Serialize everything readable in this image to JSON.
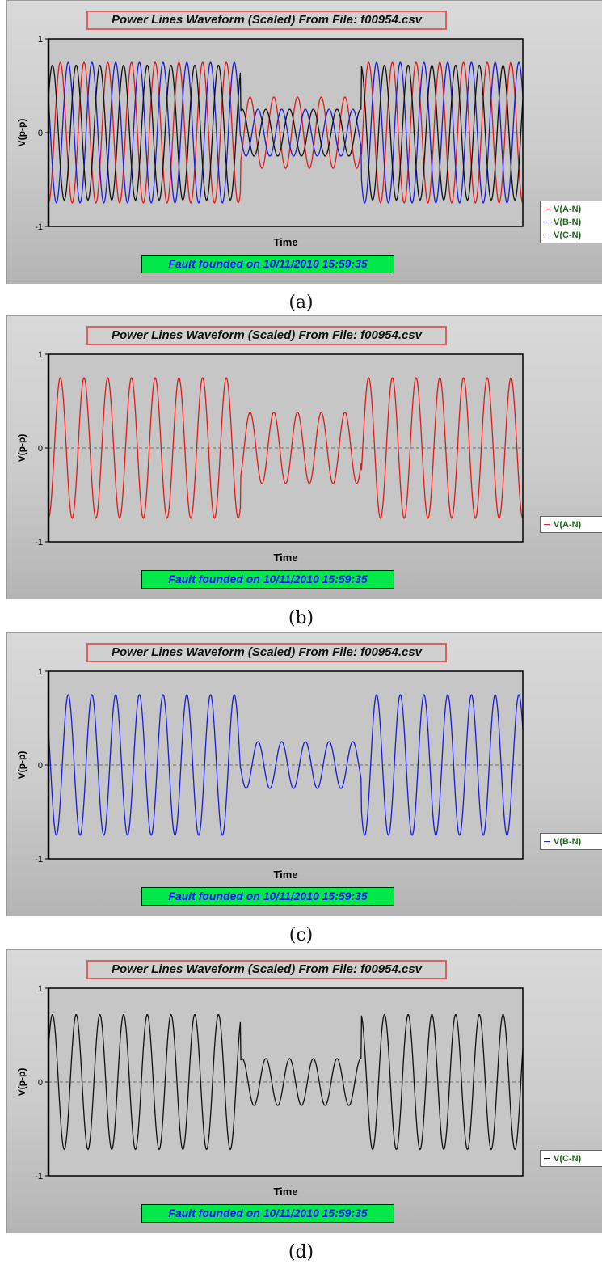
{
  "chart_data": [
    {
      "type": "line",
      "panel_label": "(a)",
      "title": "Power Lines Waveform (Scaled) From File: f00954.csv",
      "xlabel": "Time",
      "ylabel": "V(p-p)",
      "ylim": [
        -1,
        1
      ],
      "yticks": [
        "1",
        "0",
        "-1"
      ],
      "grid": "dashed lines at 1, 0, -1",
      "legend_placement": "right",
      "fault_text": "Fault founded on 10/11/2010 15:59:35",
      "series": [
        {
          "name": "V(A-N)",
          "color": "#e01a1a",
          "pre_fault_amplitude": 0.75,
          "fault_amplitude": 0.38,
          "post_fault_amplitude": 0.75,
          "cycles": 20,
          "fault_interval_cycles": [
            8.1,
            13.2
          ]
        },
        {
          "name": "V(B-N)",
          "color": "#1c1cd6",
          "pre_fault_amplitude": 0.75,
          "fault_amplitude": 0.25,
          "post_fault_amplitude": 0.75,
          "cycles": 20,
          "fault_interval_cycles": [
            8.1,
            13.2
          ]
        },
        {
          "name": "V(C-N)",
          "color": "#111111",
          "pre_fault_amplitude": 0.72,
          "fault_amplitude": 0.25,
          "post_fault_amplitude": 0.72,
          "cycles": 20,
          "fault_interval_cycles": [
            8.1,
            13.2
          ]
        }
      ]
    },
    {
      "type": "line",
      "panel_label": "(b)",
      "title": "Power Lines Waveform (Scaled) From File: f00954.csv",
      "xlabel": "Time",
      "ylabel": "V(p-p)",
      "ylim": [
        -1,
        1
      ],
      "yticks": [
        "1",
        "0",
        "-1"
      ],
      "grid": "dashed lines at 1, 0, -1",
      "legend_placement": "right",
      "fault_text": "Fault founded on 10/11/2010 15:59:35",
      "series": [
        {
          "name": "V(A-N)",
          "color": "#e01a1a",
          "pre_fault_amplitude": 0.75,
          "fault_amplitude": 0.38,
          "post_fault_amplitude": 0.75,
          "cycles": 20,
          "fault_interval_cycles": [
            8.1,
            13.2
          ]
        }
      ]
    },
    {
      "type": "line",
      "panel_label": "(c)",
      "title": "Power Lines Waveform (Scaled) From File: f00954.csv",
      "xlabel": "Time",
      "ylabel": "V(p-p)",
      "ylim": [
        -1,
        1
      ],
      "yticks": [
        "1",
        "0",
        "-1"
      ],
      "grid": "dashed lines at 1, 0, -1",
      "legend_placement": "right",
      "fault_text": "Fault founded on 10/11/2010 15:59:35",
      "series": [
        {
          "name": "V(B-N)",
          "color": "#1c1cd6",
          "pre_fault_amplitude": 0.75,
          "fault_amplitude": 0.25,
          "post_fault_amplitude": 0.75,
          "cycles": 20,
          "fault_interval_cycles": [
            8.1,
            13.2
          ]
        }
      ]
    },
    {
      "type": "line",
      "panel_label": "(d)",
      "title": "Power Lines Waveform (Scaled) From File: f00954.csv",
      "xlabel": "Time",
      "ylabel": "V(p-p)",
      "ylim": [
        -1,
        1
      ],
      "yticks": [
        "1",
        "0",
        "-1"
      ],
      "grid": "dashed lines at 1, 0, -1",
      "legend_placement": "right",
      "fault_text": "Fault founded on 10/11/2010 15:59:35",
      "series": [
        {
          "name": "V(C-N)",
          "color": "#111111",
          "pre_fault_amplitude": 0.72,
          "fault_amplitude": 0.25,
          "post_fault_amplitude": 0.72,
          "cycles": 20,
          "fault_interval_cycles": [
            8.1,
            13.2
          ]
        }
      ]
    }
  ]
}
